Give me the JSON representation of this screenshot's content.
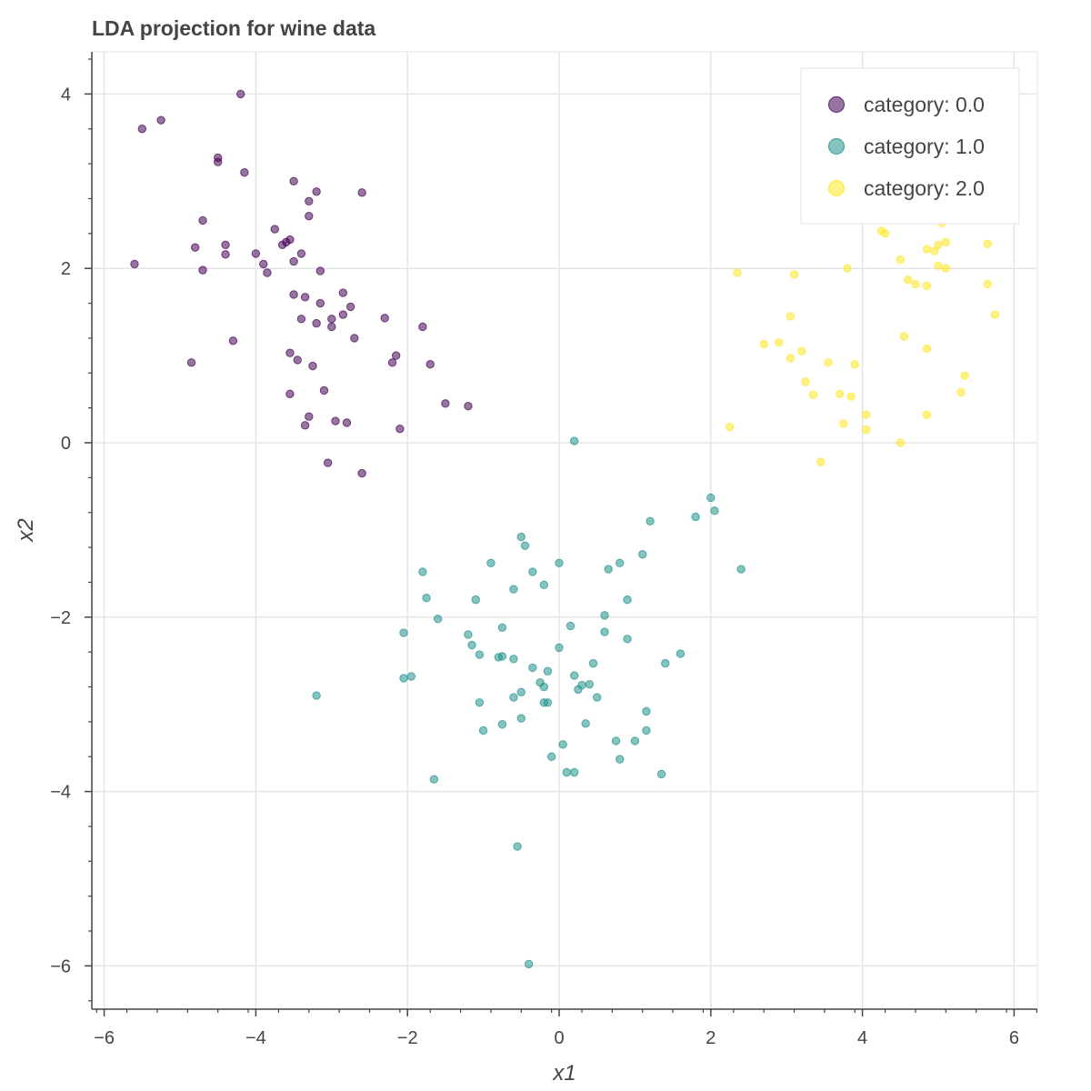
{
  "chart_data": {
    "type": "scatter",
    "title": "LDA projection for wine data",
    "xlabel": "x1",
    "ylabel": "x2",
    "xlim": [
      -6.1,
      6.3
    ],
    "ylim": [
      -6.5,
      4.5
    ],
    "xticks": [
      -6,
      -4,
      -2,
      0,
      2,
      4,
      6
    ],
    "yticks": [
      -6,
      -4,
      -2,
      0,
      2,
      4
    ],
    "xtick_labels": [
      "−6",
      "−4",
      "−2",
      "0",
      "2",
      "4",
      "6"
    ],
    "ytick_labels": [
      "−6",
      "−4",
      "−2",
      "0",
      "2",
      "4"
    ],
    "grid": true,
    "legend_position": "top-right",
    "series": [
      {
        "name": "category: 0.0",
        "color": "#440154",
        "points": [
          [
            -4.2,
            4.0
          ],
          [
            -5.25,
            3.7
          ],
          [
            -5.5,
            3.6
          ],
          [
            -4.5,
            3.27
          ],
          [
            -4.5,
            3.22
          ],
          [
            -4.15,
            3.1
          ],
          [
            -3.5,
            3.0
          ],
          [
            -3.2,
            2.88
          ],
          [
            -2.6,
            2.87
          ],
          [
            -3.3,
            2.77
          ],
          [
            -3.3,
            2.6
          ],
          [
            -4.7,
            2.55
          ],
          [
            -3.75,
            2.45
          ],
          [
            -3.55,
            2.33
          ],
          [
            -3.6,
            2.3
          ],
          [
            -3.65,
            2.27
          ],
          [
            -4.8,
            2.24
          ],
          [
            -4.4,
            2.27
          ],
          [
            -3.4,
            2.17
          ],
          [
            -4.0,
            2.17
          ],
          [
            -4.4,
            2.16
          ],
          [
            -3.9,
            2.05
          ],
          [
            -3.5,
            2.08
          ],
          [
            -5.6,
            2.05
          ],
          [
            -4.7,
            1.98
          ],
          [
            -3.15,
            1.97
          ],
          [
            -3.85,
            1.95
          ],
          [
            -3.5,
            1.7
          ],
          [
            -3.35,
            1.67
          ],
          [
            -2.85,
            1.72
          ],
          [
            -3.15,
            1.6
          ],
          [
            -2.75,
            1.56
          ],
          [
            -2.85,
            1.47
          ],
          [
            -3.0,
            1.42
          ],
          [
            -3.4,
            1.42
          ],
          [
            -3.2,
            1.37
          ],
          [
            -2.3,
            1.43
          ],
          [
            -1.8,
            1.33
          ],
          [
            -3.0,
            1.33
          ],
          [
            -2.7,
            1.2
          ],
          [
            -4.3,
            1.17
          ],
          [
            -3.55,
            1.03
          ],
          [
            -2.15,
            1.0
          ],
          [
            -3.45,
            0.95
          ],
          [
            -2.2,
            0.92
          ],
          [
            -4.85,
            0.92
          ],
          [
            -1.7,
            0.9
          ],
          [
            -3.25,
            0.88
          ],
          [
            -3.1,
            0.6
          ],
          [
            -3.55,
            0.56
          ],
          [
            -1.5,
            0.45
          ],
          [
            -1.2,
            0.42
          ],
          [
            -3.3,
            0.3
          ],
          [
            -2.95,
            0.25
          ],
          [
            -2.8,
            0.23
          ],
          [
            -3.35,
            0.2
          ],
          [
            -2.1,
            0.16
          ],
          [
            -3.05,
            -0.23
          ],
          [
            -2.6,
            -0.35
          ]
        ]
      },
      {
        "name": "category: 1.0",
        "color": "#21918c",
        "points": [
          [
            0.2,
            0.02
          ],
          [
            2.0,
            -0.63
          ],
          [
            2.05,
            -0.78
          ],
          [
            1.8,
            -0.85
          ],
          [
            1.2,
            -0.9
          ],
          [
            -0.5,
            -1.08
          ],
          [
            -0.45,
            -1.18
          ],
          [
            1.1,
            -1.28
          ],
          [
            2.4,
            -1.45
          ],
          [
            0.0,
            -1.38
          ],
          [
            -0.9,
            -1.38
          ],
          [
            0.8,
            -1.38
          ],
          [
            0.65,
            -1.45
          ],
          [
            -0.35,
            -1.48
          ],
          [
            -1.8,
            -1.48
          ],
          [
            -0.2,
            -1.63
          ],
          [
            -0.6,
            -1.68
          ],
          [
            -1.75,
            -1.78
          ],
          [
            -1.1,
            -1.8
          ],
          [
            0.9,
            -1.8
          ],
          [
            -1.6,
            -2.02
          ],
          [
            0.6,
            -1.98
          ],
          [
            -0.75,
            -2.12
          ],
          [
            0.15,
            -2.1
          ],
          [
            -2.05,
            -2.18
          ],
          [
            0.6,
            -2.17
          ],
          [
            -1.2,
            -2.2
          ],
          [
            0.9,
            -2.25
          ],
          [
            -1.15,
            -2.32
          ],
          [
            0.0,
            -2.35
          ],
          [
            -1.05,
            -2.43
          ],
          [
            1.6,
            -2.42
          ],
          [
            -0.75,
            -2.45
          ],
          [
            -0.8,
            -2.46
          ],
          [
            -0.6,
            -2.48
          ],
          [
            0.45,
            -2.53
          ],
          [
            1.4,
            -2.53
          ],
          [
            -0.35,
            -2.58
          ],
          [
            -0.15,
            -2.62
          ],
          [
            0.2,
            -2.67
          ],
          [
            -2.05,
            -2.7
          ],
          [
            -1.95,
            -2.68
          ],
          [
            -0.25,
            -2.75
          ],
          [
            0.4,
            -2.77
          ],
          [
            0.3,
            -2.78
          ],
          [
            -0.2,
            -2.8
          ],
          [
            0.25,
            -2.83
          ],
          [
            -0.5,
            -2.86
          ],
          [
            -0.6,
            -2.92
          ],
          [
            0.5,
            -2.92
          ],
          [
            -3.2,
            -2.9
          ],
          [
            -0.2,
            -2.98
          ],
          [
            -0.15,
            -2.98
          ],
          [
            -1.05,
            -2.98
          ],
          [
            1.15,
            -3.08
          ],
          [
            -0.5,
            -3.16
          ],
          [
            -0.75,
            -3.23
          ],
          [
            0.35,
            -3.22
          ],
          [
            -1.0,
            -3.3
          ],
          [
            1.15,
            -3.3
          ],
          [
            0.75,
            -3.42
          ],
          [
            1.0,
            -3.42
          ],
          [
            0.05,
            -3.46
          ],
          [
            -0.1,
            -3.6
          ],
          [
            0.8,
            -3.63
          ],
          [
            0.1,
            -3.78
          ],
          [
            0.2,
            -3.78
          ],
          [
            1.35,
            -3.8
          ],
          [
            -1.65,
            -3.86
          ],
          [
            -0.55,
            -4.63
          ],
          [
            -0.4,
            -5.98
          ]
        ]
      },
      {
        "name": "category: 2.0",
        "color": "#fde725",
        "points": [
          [
            4.25,
            2.43
          ],
          [
            4.3,
            2.4
          ],
          [
            5.05,
            2.52
          ],
          [
            4.5,
            2.1
          ],
          [
            4.85,
            2.22
          ],
          [
            4.95,
            2.2
          ],
          [
            5.0,
            2.27
          ],
          [
            5.1,
            2.3
          ],
          [
            5.65,
            2.28
          ],
          [
            3.8,
            2.0
          ],
          [
            2.35,
            1.95
          ],
          [
            3.1,
            1.93
          ],
          [
            5.0,
            2.03
          ],
          [
            5.1,
            2.0
          ],
          [
            4.6,
            1.87
          ],
          [
            4.7,
            1.82
          ],
          [
            4.85,
            1.8
          ],
          [
            5.65,
            1.82
          ],
          [
            3.05,
            1.45
          ],
          [
            5.75,
            1.47
          ],
          [
            4.55,
            1.22
          ],
          [
            2.7,
            1.13
          ],
          [
            2.9,
            1.15
          ],
          [
            3.2,
            1.05
          ],
          [
            4.85,
            1.08
          ],
          [
            3.05,
            0.97
          ],
          [
            3.55,
            0.92
          ],
          [
            3.9,
            0.9
          ],
          [
            5.35,
            0.77
          ],
          [
            3.25,
            0.7
          ],
          [
            5.3,
            0.58
          ],
          [
            3.35,
            0.55
          ],
          [
            3.7,
            0.56
          ],
          [
            3.85,
            0.53
          ],
          [
            4.05,
            0.32
          ],
          [
            4.85,
            0.32
          ],
          [
            3.75,
            0.22
          ],
          [
            2.25,
            0.18
          ],
          [
            4.05,
            0.15
          ],
          [
            4.5,
            0.0
          ],
          [
            3.45,
            -0.22
          ]
        ]
      }
    ]
  }
}
